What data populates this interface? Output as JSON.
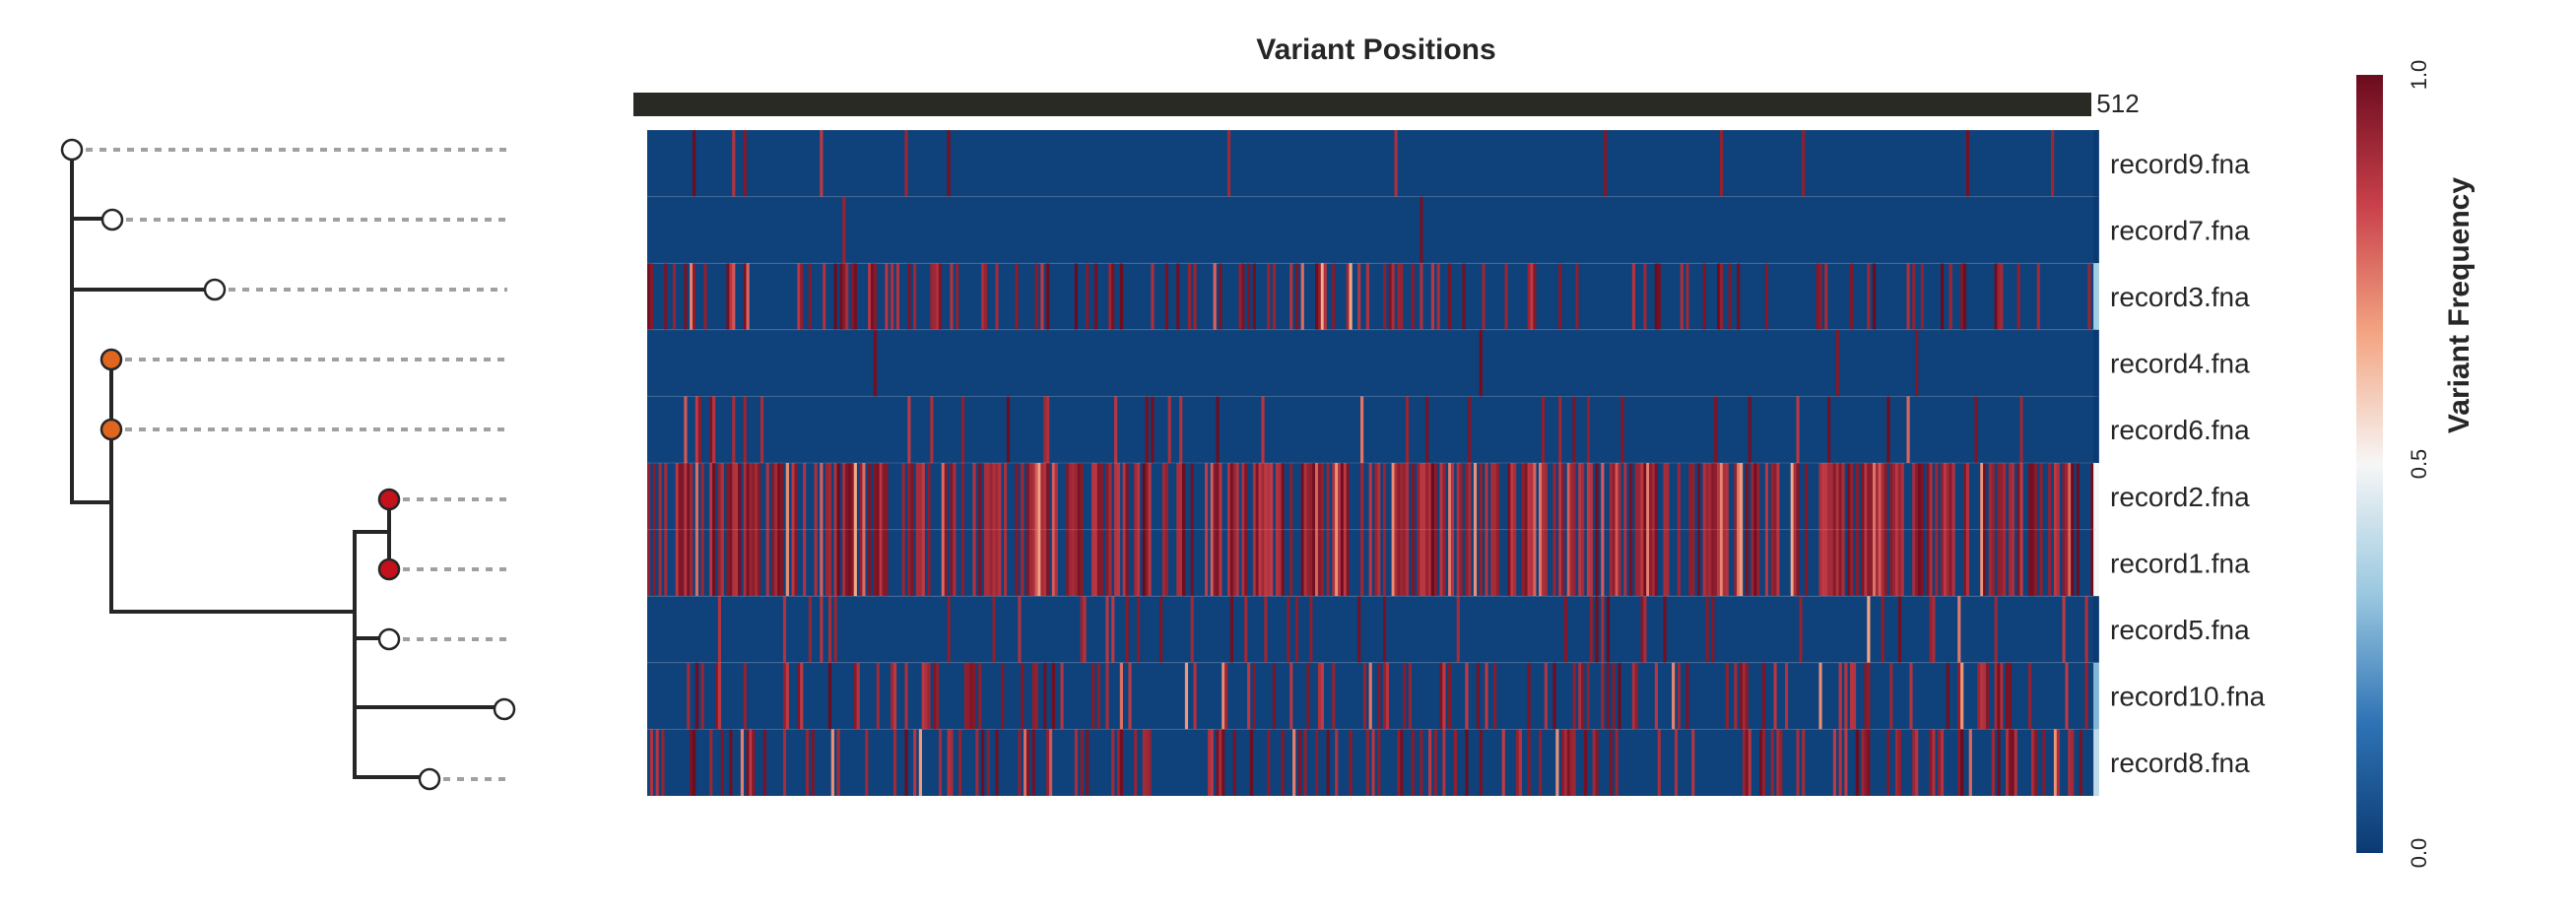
{
  "chart_data": {
    "type": "heatmap",
    "title": "Variant Positions",
    "colorbar": {
      "label": "Variant Frequency",
      "range": [
        0.0,
        1.0
      ],
      "ticks": [
        "0.0",
        "0.5",
        "1.0"
      ],
      "colormap": [
        "#0b3a73",
        "#2e73b5",
        "#9ac8e0",
        "#f6f6f6",
        "#f4a582",
        "#c8404a",
        "#6b0b1e"
      ]
    },
    "columns_count": 512,
    "last_column_label": "512",
    "rows": [
      {
        "name": "record9.fna",
        "tree_node": "white",
        "density": 0.02,
        "seed": 11
      },
      {
        "name": "record7.fna",
        "tree_node": "white",
        "density": 0.005,
        "seed": 23
      },
      {
        "name": "record3.fna",
        "tree_node": "white",
        "density": 0.3,
        "seed": 37
      },
      {
        "name": "record4.fna",
        "tree_node": "orange",
        "density": 0.01,
        "seed": 41
      },
      {
        "name": "record6.fna",
        "tree_node": "orange",
        "density": 0.06,
        "seed": 53
      },
      {
        "name": "record2.fna",
        "tree_node": "red",
        "density": 0.62,
        "seed": 67
      },
      {
        "name": "record1.fna",
        "tree_node": "red",
        "density": 0.62,
        "seed": 67
      },
      {
        "name": "record5.fna",
        "tree_node": "white",
        "density": 0.1,
        "seed": 79
      },
      {
        "name": "record10.fna",
        "tree_node": "white",
        "density": 0.22,
        "seed": 83
      },
      {
        "name": "record8.fna",
        "tree_node": "white",
        "density": 0.28,
        "seed": 97
      }
    ],
    "node_colors": {
      "white": "#ffffff",
      "orange": "#e0661f",
      "red": "#c4111b"
    },
    "tree": {
      "line_color": "#262626",
      "guide_color": "#a0a0a0"
    }
  }
}
